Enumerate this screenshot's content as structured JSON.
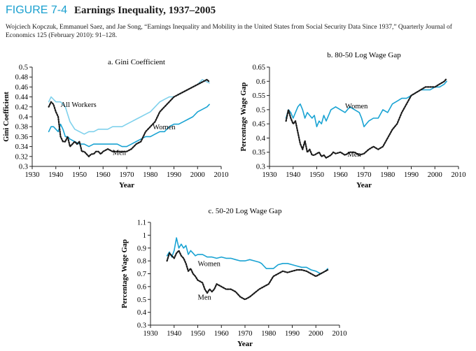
{
  "figure": {
    "label": "FIGURE 7-4",
    "title": "Earnings Inequality, 1937–2005",
    "citation": "Wojciech Kopczuk, Emmanuel Saez, and Jae Song, “Earnings Inequality and Mobility in the United States from Social Security Data Since 1937,” Quarterly Journal of Economics 125 (February 2010): 91–128."
  },
  "colors": {
    "women": "#19a3d3",
    "all_workers": "#7fd1ec",
    "men": "#1a1a1a",
    "axis": "#222222"
  },
  "chart_data": [
    {
      "type": "line",
      "title": "a. Gini Coefficient",
      "xlabel": "Year",
      "ylabel": "Gini Coefficient",
      "xlim": [
        1930,
        2010
      ],
      "ylim": [
        0.3,
        0.5
      ],
      "xticks": [
        1930,
        1940,
        1950,
        1960,
        1970,
        1980,
        1990,
        2000,
        2010
      ],
      "yticks": [
        0.3,
        0.32,
        0.34,
        0.36,
        0.38,
        0.4,
        0.42,
        0.44,
        0.46,
        0.48,
        0.5
      ],
      "ytick_labels": [
        "0.3",
        "0.32",
        "0.34",
        "0.36",
        "0.38",
        "0.4",
        "0.42",
        "0.44",
        "0.46",
        "0.48",
        "0.5"
      ],
      "series": [
        {
          "name": "All Workers",
          "style": "all_workers",
          "x": [
            1937,
            1938,
            1939,
            1940,
            1942,
            1944,
            1946,
            1948,
            1950,
            1952,
            1954,
            1956,
            1958,
            1960,
            1962,
            1964,
            1966,
            1968,
            1970,
            1972,
            1974,
            1976,
            1978,
            1980,
            1982,
            1984,
            1986,
            1988,
            1990,
            1992,
            1994,
            1996,
            1998,
            2000,
            2002,
            2004,
            2005
          ],
          "y": [
            0.43,
            0.44,
            0.435,
            0.43,
            0.43,
            0.42,
            0.39,
            0.375,
            0.37,
            0.365,
            0.37,
            0.37,
            0.375,
            0.375,
            0.375,
            0.38,
            0.38,
            0.38,
            0.385,
            0.39,
            0.395,
            0.4,
            0.405,
            0.41,
            0.42,
            0.43,
            0.435,
            0.44,
            0.44,
            0.445,
            0.45,
            0.455,
            0.46,
            0.465,
            0.475,
            0.47,
            0.468
          ]
        },
        {
          "name": "Women",
          "style": "women",
          "x": [
            1937,
            1938,
            1939,
            1940,
            1941,
            1942,
            1943,
            1944,
            1945,
            1946,
            1948,
            1950,
            1952,
            1954,
            1956,
            1958,
            1960,
            1962,
            1964,
            1966,
            1968,
            1970,
            1972,
            1974,
            1976,
            1978,
            1980,
            1982,
            1984,
            1986,
            1988,
            1990,
            1992,
            1994,
            1996,
            1998,
            2000,
            2002,
            2004,
            2005
          ],
          "y": [
            0.37,
            0.38,
            0.38,
            0.375,
            0.37,
            0.385,
            0.375,
            0.36,
            0.36,
            0.355,
            0.35,
            0.345,
            0.345,
            0.34,
            0.345,
            0.345,
            0.345,
            0.345,
            0.345,
            0.345,
            0.34,
            0.34,
            0.345,
            0.35,
            0.355,
            0.36,
            0.36,
            0.365,
            0.37,
            0.37,
            0.38,
            0.385,
            0.385,
            0.39,
            0.395,
            0.4,
            0.41,
            0.415,
            0.42,
            0.425
          ]
        },
        {
          "name": "Men",
          "style": "men",
          "x": [
            1937,
            1938,
            1939,
            1940,
            1941,
            1942,
            1943,
            1944,
            1945,
            1946,
            1947,
            1948,
            1949,
            1950,
            1951,
            1952,
            1953,
            1954,
            1955,
            1956,
            1957,
            1958,
            1959,
            1960,
            1962,
            1964,
            1966,
            1968,
            1970,
            1972,
            1974,
            1976,
            1978,
            1980,
            1982,
            1984,
            1986,
            1988,
            1990,
            1992,
            1994,
            1996,
            1998,
            2000,
            2002,
            2004,
            2005
          ],
          "y": [
            0.42,
            0.43,
            0.425,
            0.41,
            0.4,
            0.36,
            0.35,
            0.35,
            0.36,
            0.34,
            0.345,
            0.35,
            0.345,
            0.35,
            0.33,
            0.33,
            0.325,
            0.32,
            0.325,
            0.325,
            0.33,
            0.33,
            0.325,
            0.33,
            0.335,
            0.33,
            0.33,
            0.33,
            0.33,
            0.335,
            0.345,
            0.35,
            0.37,
            0.38,
            0.39,
            0.41,
            0.42,
            0.43,
            0.44,
            0.445,
            0.45,
            0.455,
            0.46,
            0.465,
            0.47,
            0.475,
            0.47
          ]
        }
      ],
      "annotations": [
        {
          "text": "All Workers",
          "x": 1942,
          "y": 0.42
        },
        {
          "text": "Women",
          "x": 1981,
          "y": 0.375
        },
        {
          "text": "Men",
          "x": 1964,
          "y": 0.323
        }
      ]
    },
    {
      "type": "line",
      "title": "b. 80-50 Log Wage Gap",
      "xlabel": "Year",
      "ylabel": "Percentage Wage Gap",
      "xlim": [
        1930,
        2010
      ],
      "ylim": [
        0.3,
        0.65
      ],
      "xticks": [
        1930,
        1940,
        1950,
        1960,
        1970,
        1980,
        1990,
        2000,
        2010
      ],
      "yticks": [
        0.3,
        0.35,
        0.4,
        0.45,
        0.5,
        0.55,
        0.6,
        0.65
      ],
      "ytick_labels": [
        "0.3",
        "0.35",
        "0.4",
        "0.45",
        "0.5",
        "0.55",
        "0.6",
        "0.65"
      ],
      "series": [
        {
          "name": "Women",
          "style": "women",
          "x": [
            1937,
            1938,
            1939,
            1940,
            1941,
            1942,
            1943,
            1944,
            1945,
            1946,
            1947,
            1948,
            1949,
            1950,
            1951,
            1952,
            1953,
            1954,
            1956,
            1958,
            1960,
            1962,
            1964,
            1966,
            1968,
            1969,
            1970,
            1971,
            1972,
            1974,
            1976,
            1978,
            1980,
            1982,
            1984,
            1986,
            1988,
            1990,
            1992,
            1994,
            1996,
            1998,
            2000,
            2002,
            2004,
            2005
          ],
          "y": [
            0.47,
            0.5,
            0.49,
            0.47,
            0.49,
            0.51,
            0.52,
            0.5,
            0.47,
            0.49,
            0.48,
            0.47,
            0.48,
            0.44,
            0.46,
            0.45,
            0.48,
            0.46,
            0.5,
            0.51,
            0.5,
            0.49,
            0.51,
            0.5,
            0.49,
            0.47,
            0.44,
            0.45,
            0.46,
            0.47,
            0.47,
            0.5,
            0.49,
            0.52,
            0.53,
            0.54,
            0.54,
            0.55,
            0.56,
            0.57,
            0.57,
            0.57,
            0.58,
            0.58,
            0.59,
            0.6
          ]
        },
        {
          "name": "Men",
          "style": "men",
          "x": [
            1937,
            1938,
            1939,
            1940,
            1941,
            1942,
            1943,
            1944,
            1945,
            1946,
            1947,
            1948,
            1949,
            1950,
            1951,
            1952,
            1953,
            1954,
            1955,
            1956,
            1957,
            1958,
            1960,
            1962,
            1964,
            1966,
            1968,
            1970,
            1972,
            1974,
            1976,
            1978,
            1980,
            1982,
            1984,
            1986,
            1988,
            1990,
            1992,
            1994,
            1996,
            1998,
            2000,
            2002,
            2004,
            2005
          ],
          "y": [
            0.46,
            0.5,
            0.47,
            0.45,
            0.46,
            0.42,
            0.38,
            0.36,
            0.39,
            0.35,
            0.36,
            0.34,
            0.34,
            0.345,
            0.35,
            0.335,
            0.34,
            0.33,
            0.335,
            0.34,
            0.35,
            0.345,
            0.35,
            0.34,
            0.35,
            0.35,
            0.34,
            0.345,
            0.36,
            0.37,
            0.36,
            0.37,
            0.4,
            0.43,
            0.45,
            0.49,
            0.52,
            0.55,
            0.56,
            0.57,
            0.58,
            0.58,
            0.58,
            0.59,
            0.6,
            0.61
          ]
        }
      ],
      "annotations": [
        {
          "text": "Women",
          "x": 1962,
          "y": 0.505
        },
        {
          "text": "Men",
          "x": 1963,
          "y": 0.335
        }
      ]
    },
    {
      "type": "line",
      "title": "c. 50-20 Log Wage Gap",
      "xlabel": "Year",
      "ylabel": "Percentage Wage Gap",
      "xlim": [
        1930,
        2010
      ],
      "ylim": [
        0.3,
        1.1
      ],
      "xticks": [
        1930,
        1940,
        1950,
        1960,
        1970,
        1980,
        1990,
        2000,
        2010
      ],
      "yticks": [
        0.3,
        0.4,
        0.5,
        0.6,
        0.7,
        0.8,
        0.9,
        1.0,
        1.1
      ],
      "ytick_labels": [
        "0.3",
        "0.4",
        "0.5",
        "0.6",
        "0.7",
        "0.8",
        "0.9",
        "1",
        "1.1"
      ],
      "series": [
        {
          "name": "Women",
          "style": "women",
          "x": [
            1937,
            1938,
            1939,
            1940,
            1941,
            1942,
            1943,
            1944,
            1945,
            1946,
            1947,
            1948,
            1949,
            1950,
            1952,
            1954,
            1956,
            1958,
            1960,
            1962,
            1964,
            1966,
            1968,
            1970,
            1972,
            1974,
            1976,
            1977,
            1978,
            1979,
            1980,
            1982,
            1984,
            1986,
            1988,
            1990,
            1992,
            1994,
            1996,
            1998,
            2000,
            2002,
            2004,
            2005
          ],
          "y": [
            0.84,
            0.87,
            0.83,
            0.88,
            0.98,
            0.9,
            0.93,
            0.9,
            0.92,
            0.85,
            0.88,
            0.86,
            0.84,
            0.85,
            0.85,
            0.83,
            0.83,
            0.82,
            0.83,
            0.82,
            0.82,
            0.81,
            0.8,
            0.8,
            0.81,
            0.8,
            0.79,
            0.78,
            0.76,
            0.74,
            0.74,
            0.74,
            0.77,
            0.78,
            0.78,
            0.77,
            0.76,
            0.75,
            0.75,
            0.73,
            0.72,
            0.7,
            0.72,
            0.74
          ]
        },
        {
          "name": "Men",
          "style": "men",
          "x": [
            1937,
            1938,
            1939,
            1940,
            1941,
            1942,
            1943,
            1944,
            1945,
            1946,
            1947,
            1948,
            1949,
            1950,
            1951,
            1952,
            1953,
            1954,
            1955,
            1956,
            1957,
            1958,
            1960,
            1962,
            1964,
            1966,
            1968,
            1970,
            1972,
            1974,
            1976,
            1978,
            1980,
            1982,
            1984,
            1986,
            1988,
            1990,
            1992,
            1994,
            1996,
            1998,
            2000,
            2002,
            2004,
            2005
          ],
          "y": [
            0.8,
            0.86,
            0.84,
            0.82,
            0.86,
            0.88,
            0.84,
            0.82,
            0.78,
            0.72,
            0.74,
            0.7,
            0.68,
            0.65,
            0.64,
            0.63,
            0.58,
            0.55,
            0.58,
            0.56,
            0.58,
            0.62,
            0.6,
            0.58,
            0.58,
            0.56,
            0.52,
            0.5,
            0.52,
            0.55,
            0.58,
            0.6,
            0.62,
            0.68,
            0.7,
            0.72,
            0.71,
            0.72,
            0.73,
            0.73,
            0.72,
            0.7,
            0.68,
            0.7,
            0.72,
            0.73
          ]
        }
      ],
      "annotations": [
        {
          "text": "Women",
          "x": 1950,
          "y": 0.76
        },
        {
          "text": "Men",
          "x": 1950,
          "y": 0.5
        }
      ]
    }
  ]
}
